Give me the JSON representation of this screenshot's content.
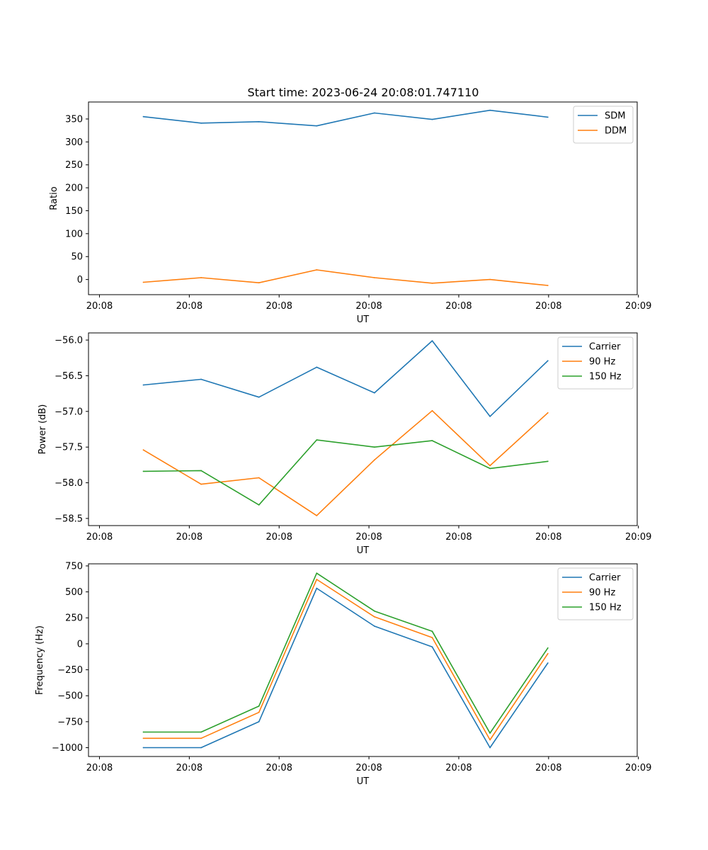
{
  "figure": {
    "title": "Start time: 2023-06-24 20:08:01.747110"
  },
  "chart_data": [
    {
      "type": "line",
      "title": "Start time: 2023-06-24 20:08:01.747110",
      "xlabel": "UT",
      "ylabel": "Ratio",
      "xticks": [
        "20:08",
        "20:08",
        "20:08",
        "20:08",
        "20:08",
        "20:08",
        "20:09"
      ],
      "yticks": [
        0,
        50,
        100,
        150,
        200,
        250,
        300,
        350
      ],
      "ylim": [
        -33,
        387
      ],
      "x_count": 8,
      "legend_position": "upper right",
      "grid": false,
      "series": [
        {
          "name": "SDM",
          "color": "#1f77b4",
          "values": [
            355,
            341,
            344,
            335,
            363,
            349,
            369,
            354
          ]
        },
        {
          "name": "DDM",
          "color": "#ff7f0e",
          "values": [
            -6,
            4,
            -7,
            21,
            4,
            -8,
            0,
            -13
          ]
        }
      ]
    },
    {
      "type": "line",
      "xlabel": "UT",
      "ylabel": "Power (dB)",
      "xticks": [
        "20:08",
        "20:08",
        "20:08",
        "20:08",
        "20:08",
        "20:08",
        "20:09"
      ],
      "yticks": [
        -58.5,
        -58.0,
        -57.5,
        -57.0,
        -56.5,
        -56.0
      ],
      "ytick_labels": [
        "−58.5",
        "−58.0",
        "−57.5",
        "−57.0",
        "−56.5",
        "−56.0"
      ],
      "ylim": [
        -58.6,
        -55.9
      ],
      "x_count": 8,
      "legend_position": "upper right",
      "grid": false,
      "series": [
        {
          "name": "Carrier",
          "color": "#1f77b4",
          "values": [
            -56.63,
            -56.55,
            -56.8,
            -56.38,
            -56.74,
            -56.01,
            -57.07,
            -56.29
          ]
        },
        {
          "name": "90 Hz",
          "color": "#ff7f0e",
          "values": [
            -57.54,
            -58.02,
            -57.93,
            -58.46,
            -57.68,
            -56.99,
            -57.76,
            -57.02
          ]
        },
        {
          "name": "150 Hz",
          "color": "#2ca02c",
          "values": [
            -57.84,
            -57.83,
            -58.31,
            -57.4,
            -57.5,
            -57.41,
            -57.8,
            -57.7
          ]
        }
      ]
    },
    {
      "type": "line",
      "xlabel": "UT",
      "ylabel": "Frequency (Hz)",
      "xticks": [
        "20:08",
        "20:08",
        "20:08",
        "20:08",
        "20:08",
        "20:08",
        "20:09"
      ],
      "yticks": [
        -1000,
        -750,
        -500,
        -250,
        0,
        250,
        500,
        750
      ],
      "ytick_labels": [
        "−1000",
        "−750",
        "−500",
        "−250",
        "0",
        "250",
        "500",
        "750"
      ],
      "ylim": [
        -1085,
        770
      ],
      "x_count": 8,
      "legend_position": "upper right",
      "grid": false,
      "series": [
        {
          "name": "Carrier",
          "color": "#1f77b4",
          "values": [
            -1000,
            -1000,
            -750,
            535,
            170,
            -30,
            -1000,
            -185
          ]
        },
        {
          "name": "90 Hz",
          "color": "#ff7f0e",
          "values": [
            -910,
            -910,
            -660,
            620,
            260,
            60,
            -925,
            -95
          ]
        },
        {
          "name": "150 Hz",
          "color": "#2ca02c",
          "values": [
            -850,
            -850,
            -600,
            680,
            315,
            120,
            -860,
            -40
          ]
        }
      ]
    }
  ]
}
